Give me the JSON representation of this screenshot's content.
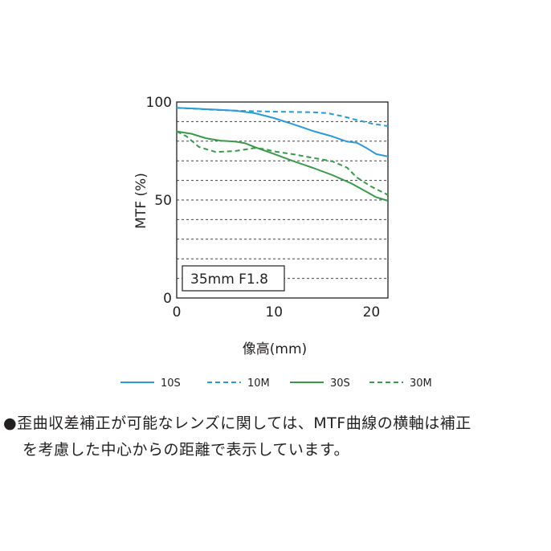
{
  "chart_data": {
    "type": "line",
    "title": "",
    "xlabel": "像高(mm)",
    "ylabel": "MTF (%)",
    "xlim": [
      0,
      21.7
    ],
    "ylim": [
      0,
      100
    ],
    "x_ticks": [
      "0",
      "10",
      "20"
    ],
    "y_ticks": [
      "0",
      "50",
      "100"
    ],
    "grid": "horizontal dashed every 10",
    "legend_position": "bottom",
    "annotation": "35mm F1.8",
    "series": [
      {
        "name": "10S",
        "style": "solid",
        "color": "#2b9ad6",
        "points": [
          [
            0,
            97
          ],
          [
            2,
            96.6
          ],
          [
            4,
            96.1
          ],
          [
            6,
            95.6
          ],
          [
            8,
            94.3
          ],
          [
            10,
            91.8
          ],
          [
            12,
            88.6
          ],
          [
            14,
            85.2
          ],
          [
            16,
            82.4
          ],
          [
            17.5,
            79.8
          ],
          [
            18.5,
            79.2
          ],
          [
            19.5,
            76.5
          ],
          [
            20.5,
            73.4
          ],
          [
            21.7,
            72.2
          ]
        ]
      },
      {
        "name": "10M",
        "style": "dashed",
        "color": "#2b9ad6",
        "points": [
          [
            0,
            97
          ],
          [
            2,
            96.5
          ],
          [
            4,
            96
          ],
          [
            6,
            95.6
          ],
          [
            8,
            95.3
          ],
          [
            10,
            95.1
          ],
          [
            12,
            94.9
          ],
          [
            14,
            94.8
          ],
          [
            15.5,
            94.3
          ],
          [
            17,
            92.8
          ],
          [
            18.5,
            90.8
          ],
          [
            20,
            89
          ],
          [
            21.7,
            87.7
          ]
        ]
      },
      {
        "name": "30S",
        "style": "solid",
        "color": "#3a9a48",
        "points": [
          [
            0,
            85
          ],
          [
            1.5,
            83.8
          ],
          [
            3,
            81.5
          ],
          [
            4.5,
            80.3
          ],
          [
            6,
            79.8
          ],
          [
            7,
            79
          ],
          [
            8,
            77
          ],
          [
            10,
            73.5
          ],
          [
            12,
            69.8
          ],
          [
            14,
            66.4
          ],
          [
            16,
            62.7
          ],
          [
            18,
            58.3
          ],
          [
            19.5,
            54.2
          ],
          [
            20.5,
            51.4
          ],
          [
            21.7,
            49.6
          ]
        ]
      },
      {
        "name": "30M",
        "style": "dashed",
        "color": "#3a9a48",
        "points": [
          [
            0,
            85
          ],
          [
            1,
            82.5
          ],
          [
            2.3,
            77
          ],
          [
            4,
            74.5
          ],
          [
            6,
            75
          ],
          [
            8,
            76.5
          ],
          [
            9,
            76
          ],
          [
            10,
            74.8
          ],
          [
            12,
            73.3
          ],
          [
            14,
            71.5
          ],
          [
            16,
            69.7
          ],
          [
            17.5,
            66.5
          ],
          [
            18.5,
            61.5
          ],
          [
            20,
            56.8
          ],
          [
            21.7,
            52.6
          ]
        ]
      }
    ]
  },
  "note": {
    "bullet": "●",
    "line1": "歪曲収差補正が可能なレンズに関しては、MTF曲線の横軸は補正",
    "line2": "を考慮した中心からの距離で表示しています。"
  }
}
